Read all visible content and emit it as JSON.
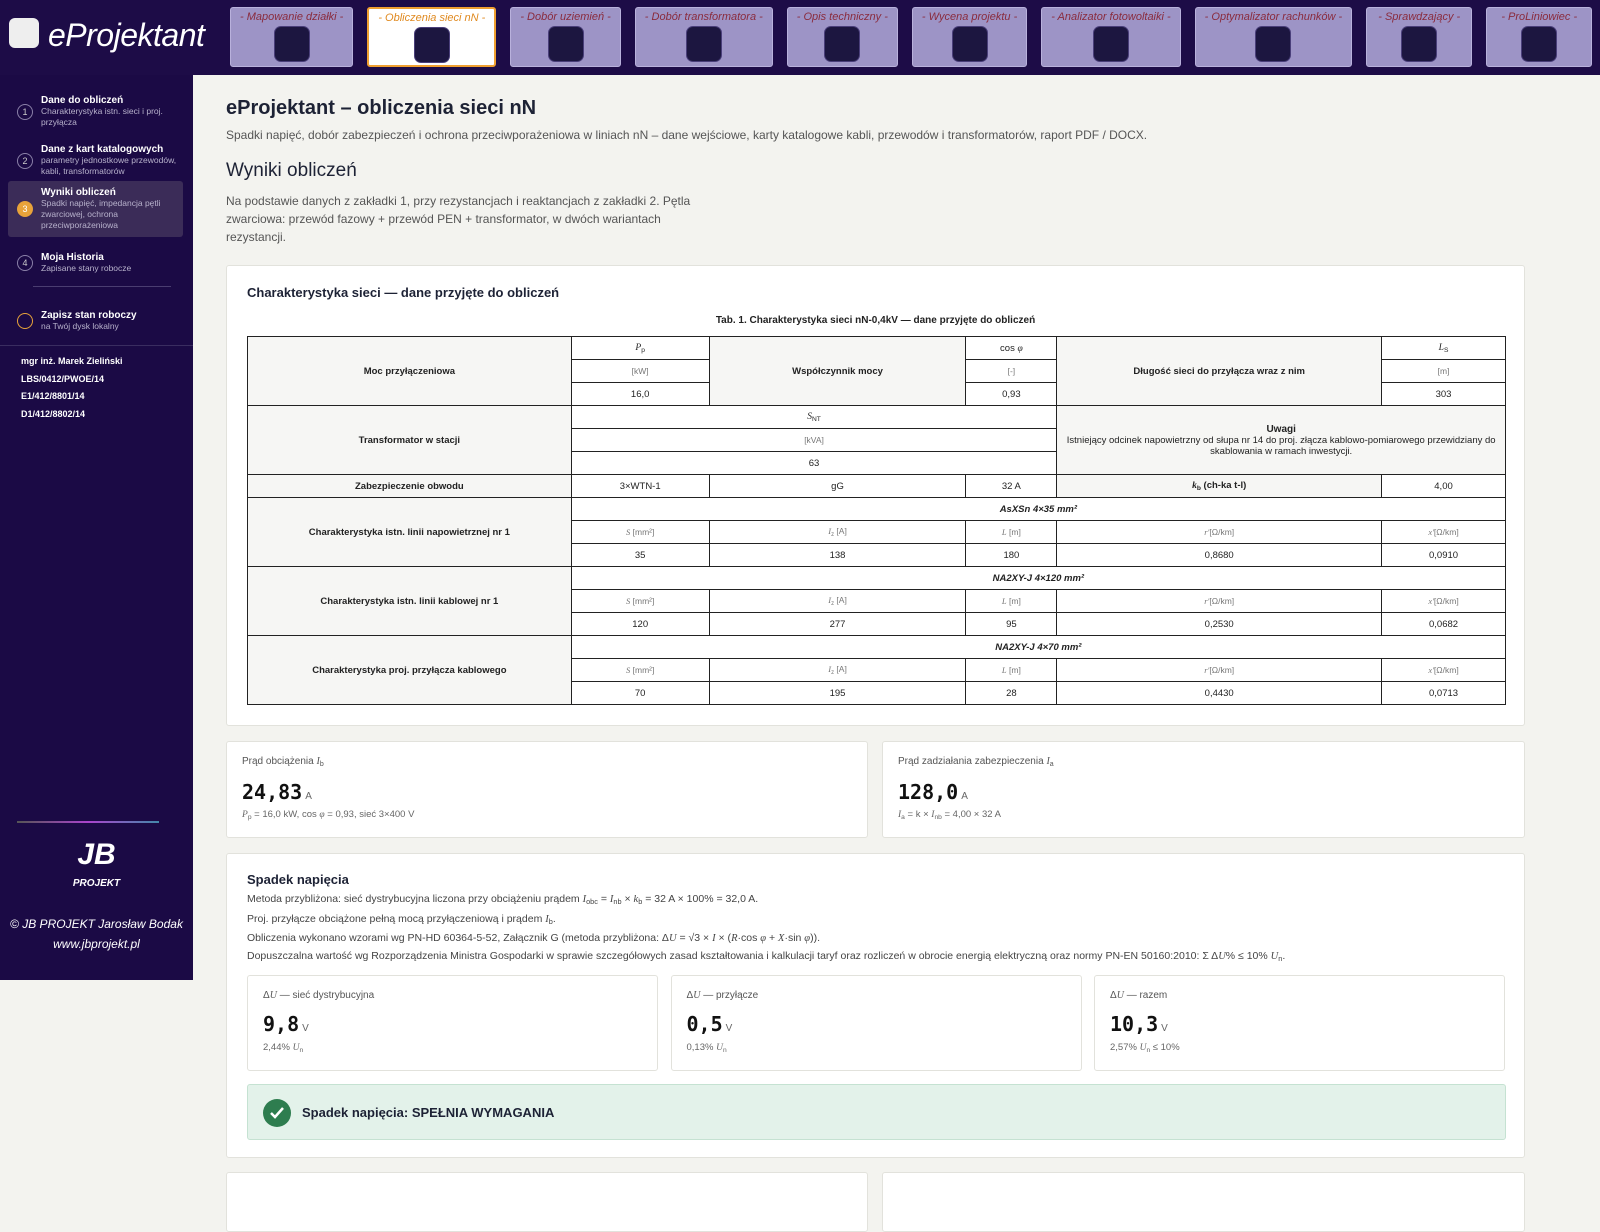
{
  "header": {
    "logo": "eProjektant",
    "tabs": [
      "- Mapowanie działki -",
      "- Obliczenia sieci nN -",
      "- Dobór uziemień -",
      "- Dobór transformatora -",
      "- Opis techniczny -",
      "- Wycena projektu -",
      "- Analizator fotowoltaiki -",
      "- Optymalizator rachunków -",
      "- Sprawdzający -",
      "- ProLiniowiec -"
    ]
  },
  "sidebar": {
    "steps": [
      {
        "num": 1,
        "title": "Dane do obliczeń",
        "subtitle": "Charakterystyka istn. sieci i proj. przyłącza"
      },
      {
        "num": 2,
        "title": "Dane z kart katalogowych",
        "subtitle": "parametry jednostkowe przewodów, kabli, transformatorów"
      },
      {
        "num": 3,
        "title": "Wyniki obliczeń",
        "subtitle": "Spadki napięć, impedancja pętli zwarciowej, ochrona przeciwporażeniowa"
      },
      {
        "num": 4,
        "title": "Moja Historia",
        "subtitle": "Zapisane stany robocze"
      }
    ],
    "save": {
      "title": "Zapisz stan roboczy",
      "subtitle": "na Twój dysk lokalny"
    },
    "user": [
      "mgr inż. Marek Zieliński",
      "LBS/0412/PWOE/14",
      "E1/412/8801/14",
      "D1/412/8802/14"
    ],
    "footer": {
      "logo_top": "JB",
      "logo_bottom": "PROJEKT",
      "credit": "© JB PROJEKT Jarosław Bodak",
      "url": "www.jbprojekt.pl"
    }
  },
  "main": {
    "title": "eProjektant – obliczenia sieci nN",
    "subtitle": "Spadki napięć, dobór zabezpieczeń i ochrona przeciwporażeniowa w liniach nN – dane wejściowe, karty katalogowe kabli, przewodów i transformatorów, raport PDF / DOCX.",
    "section": "Wyniki obliczeń",
    "intro": "Na podstawie danych z zakładki 1, przy rezystancjach i reaktancjach z zakładki 2. Pętla zwarciowa: przewód fazowy + przewód PEN + transformator, w dwóch wariantach rezystancji.",
    "table_card": {
      "title": "Charakterystyka sieci — dane przyjęte do obliczeń",
      "caption": "Tab. 1. Charakterystyka sieci nN-0,4kV — dane przyjęte do obliczeń"
    },
    "table": {
      "moc": {
        "label": "Moc przyłączeniowa",
        "sym": [
          {
            "t": "P",
            "sub": "p"
          }
        ],
        "unit": "[kW]",
        "value": "16,0"
      },
      "cos": {
        "label": "Współczynnik mocy",
        "sym": [
          "cos ",
          {
            "t": "φ"
          }
        ],
        "unit": "[-]",
        "value": "0,93"
      },
      "dlugosc": {
        "label": "Długość sieci do przyłącza wraz z nim",
        "sym": [
          {
            "t": "L",
            "sub": "S"
          }
        ],
        "unit": "[m]",
        "value": 303
      },
      "trafo": {
        "label": "Transformator w stacji",
        "sym": [
          {
            "t": "S",
            "sub": "NT"
          }
        ],
        "unit": "[kVA]",
        "value": 63
      },
      "uwagi": {
        "title": "Uwagi",
        "text": "Istniejący odcinek napowietrzny od słupa nr 14 do proj. złącza kablowo-pomiarowego przewidziany do skablowania w ramach inwestycji."
      },
      "zab": {
        "label": "Zabezpieczenie obwodu",
        "type": "3×WTN-1",
        "char": "gG",
        "rating": "32 A",
        "kb": [
          {
            "t": "k",
            "sub": "b"
          },
          " (ch-ka t-l)"
        ],
        "kb_value": "4,00"
      },
      "col_headers": [
        [
          {
            "t": "S"
          },
          " [mm²]"
        ],
        [
          {
            "t": "I",
            "sub": "z"
          },
          " [A]"
        ],
        [
          {
            "t": "L"
          },
          " [m]"
        ],
        [
          {
            "t": "r'"
          },
          "[Ω/km]"
        ],
        [
          {
            "t": "x'"
          },
          "[Ω/km]"
        ]
      ],
      "lines": [
        {
          "label": "Charakterystyka istn. linii napowietrznej nr 1",
          "cable": "AsXSn 4×35 mm²",
          "values": [
            35,
            138,
            180,
            "0,8680",
            "0,0910"
          ]
        },
        {
          "label": "Charakterystyka istn. linii kablowej nr 1",
          "cable": "NA2XY-J 4×120 mm²",
          "values": [
            120,
            277,
            95,
            "0,2530",
            "0,0682"
          ]
        },
        {
          "label": "Charakterystyka proj. przyłącza kablowego",
          "cable": "NA2XY-J 4×70 mm²",
          "values": [
            70,
            195,
            28,
            "0,4430",
            "0,0713"
          ]
        }
      ]
    },
    "currents": [
      {
        "label": [
          "Prąd obciążenia ",
          {
            "t": "I",
            "sub": "b"
          }
        ],
        "value": "24,83",
        "unit": "A",
        "note": [
          {
            "t": "P",
            "sub": "p"
          },
          " = 16,0 kW, cos ",
          {
            "t": "φ"
          },
          " = 0,93, sieć 3×400 V"
        ]
      },
      {
        "label": [
          "Prąd zadziałania zabezpieczenia ",
          {
            "t": "I",
            "sub": "a"
          }
        ],
        "value": "128,0",
        "unit": "A",
        "note": [
          {
            "t": "I",
            "sub": "a"
          },
          " = k × ",
          {
            "t": "I",
            "sub": "nb"
          },
          " = 4,00 × 32 A"
        ]
      }
    ],
    "drop": {
      "title": "Spadek napięcia",
      "lines": [
        [
          "Metoda przybliżona: sieć dystrybucyjna liczona przy obciążeniu prądem ",
          {
            "t": "I",
            "sub": "obc"
          },
          " = ",
          {
            "t": "I",
            "sub": "nb"
          },
          " × ",
          {
            "t": "k",
            "sub": "b"
          },
          " = 32 A × 100% = 32,0 A."
        ],
        [
          "Proj. przyłącze obciążone pełną mocą przyłączeniową i prądem ",
          {
            "t": "I",
            "sub": "b"
          },
          "."
        ],
        [
          "Obliczenia wykonano wzorami wg PN-HD 60364-5-52, Załącznik G (metoda przybliżona: Δ",
          {
            "t": "U"
          },
          " = √3 × ",
          {
            "t": "I"
          },
          " × (",
          {
            "t": "R"
          },
          "·cos ",
          {
            "t": "φ"
          },
          " + ",
          {
            "t": "X"
          },
          "·sin ",
          {
            "t": "φ"
          },
          "))."
        ],
        [
          "Dopuszczalna wartość wg Rozporządzenia Ministra Gospodarki w sprawie szczegółowych zasad kształtowania i kalkulacji taryf oraz rozliczeń w obrocie energią elektryczną oraz normy PN-EN 50160:2010: Σ Δ",
          {
            "t": "U"
          },
          "% ≤ 10% ",
          {
            "t": "U",
            "sub": "n"
          },
          "."
        ]
      ],
      "cards": [
        {
          "label": [
            "Δ",
            {
              "t": "U"
            },
            " — sieć dystrybucyjna"
          ],
          "value": "9,8",
          "unit": "V",
          "note": [
            "2,44% ",
            {
              "t": "U",
              "sub": "n"
            }
          ]
        },
        {
          "label": [
            "Δ",
            {
              "t": "U"
            },
            " — przyłącze"
          ],
          "value": "0,5",
          "unit": "V",
          "note": [
            "0,13% ",
            {
              "t": "U",
              "sub": "n"
            }
          ]
        },
        {
          "label": [
            "Δ",
            {
              "t": "U"
            },
            " — razem"
          ],
          "value": "10,3",
          "unit": "V",
          "note": [
            "2,57% ",
            {
              "t": "U",
              "sub": "n"
            },
            " ≤ 10%"
          ]
        }
      ],
      "status": "Spadek napięcia: SPEŁNIA WYMAGANIA"
    }
  }
}
